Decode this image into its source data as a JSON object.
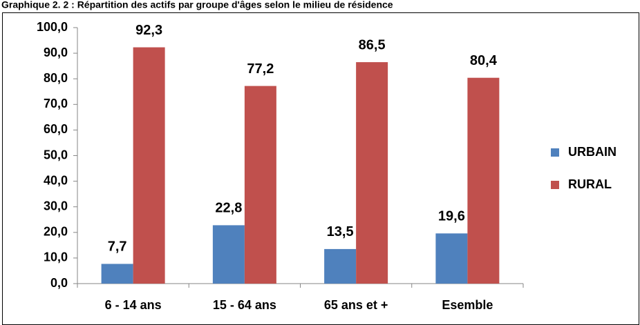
{
  "chart_data": {
    "type": "bar",
    "title": "Graphique 2. 2 : Répartition des actifs par groupe d'âges selon le milieu de résidence",
    "categories": [
      "6 - 14 ans",
      "15 - 64 ans",
      "65 ans et +",
      "Esemble"
    ],
    "series": [
      {
        "name": "URBAIN",
        "color": "#4f81bd",
        "values": [
          7.7,
          22.8,
          13.5,
          19.6
        ],
        "value_labels": [
          "7,7",
          "22,8",
          "13,5",
          "19,6"
        ]
      },
      {
        "name": "RURAL",
        "color": "#c0504d",
        "values": [
          92.3,
          77.2,
          86.5,
          80.4
        ],
        "value_labels": [
          "92,3",
          "77,2",
          "86,5",
          "80,4"
        ]
      }
    ],
    "ylim": [
      0,
      100
    ],
    "yticks": [
      {
        "value": 0,
        "label": "0,0"
      },
      {
        "value": 10,
        "label": "10,0"
      },
      {
        "value": 20,
        "label": "20,0"
      },
      {
        "value": 30,
        "label": "30,0"
      },
      {
        "value": 40,
        "label": "40,0"
      },
      {
        "value": 50,
        "label": "50,0"
      },
      {
        "value": 60,
        "label": "60,0"
      },
      {
        "value": 70,
        "label": "70,0"
      },
      {
        "value": 80,
        "label": "80,0"
      },
      {
        "value": 90,
        "label": "90,0"
      },
      {
        "value": 100,
        "label": "100,0"
      }
    ],
    "grid": false,
    "legend": "right"
  }
}
